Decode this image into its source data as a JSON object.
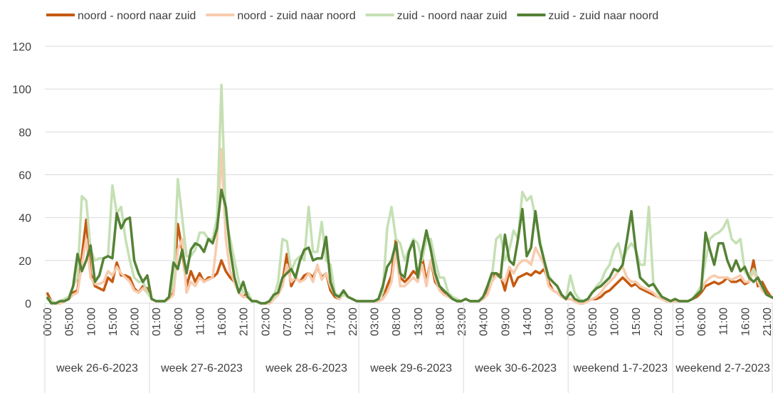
{
  "chart_data": {
    "type": "line",
    "categories": [
      "00:00",
      null,
      null,
      null,
      null,
      "05:00",
      null,
      null,
      null,
      null,
      "10:00",
      null,
      null,
      null,
      null,
      "15:00",
      null,
      null,
      null,
      null,
      "20:00",
      null,
      null,
      null,
      null,
      "01:00",
      null,
      null,
      null,
      null,
      "06:00",
      null,
      null,
      null,
      null,
      "11:00",
      null,
      null,
      null,
      null,
      "16:00",
      null,
      null,
      null,
      null,
      "21:00",
      null,
      null,
      null,
      null,
      "02:00",
      null,
      null,
      null,
      null,
      "07:00",
      null,
      null,
      null,
      null,
      "12:00",
      null,
      null,
      null,
      null,
      "17:00",
      null,
      null,
      null,
      null,
      "22:00",
      null,
      null,
      null,
      null,
      "03:00",
      null,
      null,
      null,
      null,
      "08:00",
      null,
      null,
      null,
      null,
      "13:00",
      null,
      null,
      null,
      null,
      "18:00",
      null,
      null,
      null,
      null,
      "23:00",
      null,
      null,
      null,
      null,
      "04:00",
      null,
      null,
      null,
      null,
      "09:00",
      null,
      null,
      null,
      null,
      "14:00",
      null,
      null,
      null,
      null,
      "19:00",
      null,
      null,
      null,
      null,
      "00:00",
      null,
      null,
      null,
      null,
      "05:00",
      null,
      null,
      null,
      null,
      "10:00",
      null,
      null,
      null,
      null,
      "15:00",
      null,
      null,
      null,
      null,
      "20:00",
      null,
      null,
      null,
      null,
      "01:00",
      null,
      null,
      null,
      null,
      "06:00",
      null,
      null,
      null,
      null,
      "11:00",
      null,
      null,
      null,
      null,
      "16:00",
      null,
      null,
      null,
      null,
      "21:00",
      null,
      null
    ],
    "groups": [
      "week 26-6-2023",
      "week 27-6-2023",
      "week 28-6-2023",
      "week 29-6-2023",
      "week 30-6-2023",
      "weekend 1-7-2023",
      "weekend 2-7-2023"
    ],
    "series": [
      {
        "name": "noord - noord naar zuid",
        "color": "#c55a11",
        "values": [
          5,
          1,
          0,
          0,
          1,
          2,
          5,
          6,
          22,
          39,
          14,
          8,
          7,
          6,
          12,
          10,
          19,
          13,
          13,
          12,
          7,
          5,
          8,
          7,
          2,
          1,
          1,
          1,
          2,
          5,
          37,
          25,
          8,
          15,
          10,
          14,
          10,
          12,
          12,
          14,
          20,
          15,
          12,
          10,
          5,
          3,
          5,
          1,
          1,
          0,
          0,
          0,
          2,
          5,
          10,
          23,
          8,
          12,
          10,
          13,
          14,
          12,
          17,
          12,
          14,
          6,
          3,
          2,
          5,
          3,
          2,
          1,
          1,
          1,
          1,
          1,
          1,
          2,
          8,
          13,
          30,
          12,
          10,
          12,
          15,
          13,
          22,
          10,
          20,
          10,
          7,
          5,
          4,
          2,
          1,
          1,
          2,
          1,
          1,
          1,
          2,
          5,
          12,
          14,
          13,
          6,
          15,
          8,
          12,
          13,
          14,
          13,
          15,
          14,
          16,
          10,
          6,
          5,
          3,
          2,
          2,
          1,
          0,
          0,
          1,
          2,
          2,
          3,
          5,
          6,
          8,
          10,
          12,
          10,
          8,
          9,
          7,
          6,
          5,
          4,
          3,
          2,
          1,
          1,
          1,
          1,
          1,
          1,
          2,
          3,
          5,
          8,
          9,
          10,
          9,
          10,
          12,
          10,
          10,
          11,
          9,
          10,
          20,
          8,
          10,
          6,
          3,
          3
        ]
      },
      {
        "name": "noord - zuid naar noord",
        "color": "#f8cbad",
        "values": [
          3,
          1,
          0,
          0,
          1,
          2,
          4,
          5,
          18,
          30,
          12,
          9,
          9,
          10,
          15,
          13,
          17,
          14,
          12,
          10,
          6,
          5,
          7,
          5,
          2,
          1,
          1,
          1,
          2,
          4,
          25,
          30,
          5,
          10,
          8,
          12,
          10,
          11,
          12,
          30,
          72,
          30,
          15,
          10,
          5,
          3,
          3,
          1,
          1,
          0,
          0,
          0,
          2,
          4,
          8,
          18,
          10,
          12,
          10,
          11,
          14,
          10,
          18,
          11,
          14,
          8,
          4,
          2,
          4,
          3,
          2,
          1,
          1,
          1,
          1,
          1,
          1,
          2,
          5,
          10,
          25,
          8,
          8,
          10,
          12,
          10,
          18,
          8,
          20,
          12,
          6,
          4,
          3,
          2,
          1,
          1,
          2,
          1,
          1,
          1,
          2,
          4,
          10,
          13,
          12,
          10,
          17,
          14,
          18,
          20,
          20,
          18,
          26,
          22,
          18,
          8,
          6,
          5,
          3,
          2,
          2,
          1,
          0,
          0,
          1,
          2,
          3,
          5,
          8,
          10,
          12,
          15,
          17,
          12,
          10,
          10,
          8,
          7,
          6,
          5,
          3,
          2,
          1,
          1,
          1,
          1,
          1,
          1,
          2,
          4,
          6,
          10,
          12,
          13,
          12,
          12,
          12,
          11,
          12,
          13,
          10,
          10,
          15,
          10,
          6,
          4,
          3,
          3
        ]
      },
      {
        "name": "zuid - noord naar zuid",
        "color": "#c5e0b4",
        "values": [
          2,
          1,
          0,
          1,
          2,
          3,
          8,
          12,
          50,
          48,
          25,
          20,
          21,
          21,
          22,
          55,
          42,
          45,
          30,
          20,
          12,
          10,
          10,
          5,
          2,
          1,
          1,
          1,
          3,
          10,
          58,
          40,
          22,
          22,
          25,
          33,
          33,
          30,
          30,
          40,
          102,
          40,
          30,
          20,
          10,
          5,
          5,
          1,
          1,
          0,
          0,
          1,
          3,
          10,
          30,
          29,
          15,
          20,
          22,
          20,
          45,
          24,
          24,
          38,
          20,
          18,
          5,
          3,
          4,
          3,
          2,
          1,
          1,
          1,
          1,
          1,
          2,
          5,
          35,
          45,
          30,
          28,
          20,
          25,
          30,
          28,
          20,
          30,
          30,
          20,
          12,
          12,
          5,
          3,
          2,
          1,
          2,
          1,
          1,
          1,
          3,
          8,
          12,
          30,
          32,
          20,
          25,
          34,
          30,
          52,
          48,
          50,
          40,
          30,
          20,
          13,
          10,
          8,
          4,
          2,
          13,
          5,
          2,
          1,
          2,
          5,
          8,
          10,
          15,
          18,
          25,
          28,
          20,
          25,
          28,
          25,
          18,
          18,
          45,
          10,
          5,
          3,
          2,
          1,
          2,
          1,
          1,
          1,
          2,
          5,
          8,
          20,
          30,
          32,
          33,
          35,
          39,
          30,
          28,
          30,
          15,
          12,
          16,
          12,
          8,
          4,
          3,
          2
        ]
      },
      {
        "name": "zuid - zuid naar noord",
        "color": "#548235",
        "values": [
          3,
          0,
          0,
          1,
          1,
          2,
          8,
          23,
          15,
          20,
          27,
          10,
          13,
          21,
          22,
          21,
          42,
          35,
          39,
          40,
          20,
          14,
          10,
          13,
          2,
          1,
          1,
          1,
          3,
          19,
          16,
          25,
          14,
          25,
          28,
          27,
          24,
          30,
          28,
          35,
          53,
          45,
          25,
          12,
          5,
          10,
          3,
          1,
          1,
          0,
          0,
          1,
          4,
          5,
          12,
          14,
          16,
          12,
          20,
          25,
          26,
          20,
          21,
          21,
          31,
          10,
          4,
          3,
          6,
          3,
          2,
          1,
          1,
          1,
          1,
          1,
          2,
          8,
          17,
          20,
          28,
          14,
          12,
          24,
          29,
          12,
          24,
          34,
          25,
          14,
          8,
          6,
          4,
          2,
          1,
          1,
          2,
          1,
          1,
          1,
          3,
          8,
          14,
          14,
          12,
          32,
          20,
          18,
          30,
          44,
          22,
          26,
          43,
          28,
          20,
          12,
          10,
          8,
          4,
          2,
          5,
          2,
          1,
          1,
          2,
          5,
          7,
          8,
          10,
          12,
          16,
          15,
          18,
          30,
          43,
          25,
          12,
          10,
          8,
          9,
          6,
          3,
          2,
          1,
          2,
          1,
          1,
          1,
          2,
          4,
          6,
          33,
          25,
          18,
          28,
          28,
          20,
          15,
          20,
          15,
          17,
          12,
          10,
          12,
          8,
          4,
          3,
          2
        ]
      }
    ],
    "ylim": [
      0,
      120
    ],
    "yticks": [
      0,
      20,
      40,
      60,
      80,
      100,
      120
    ],
    "grid": true,
    "legend": "top"
  }
}
